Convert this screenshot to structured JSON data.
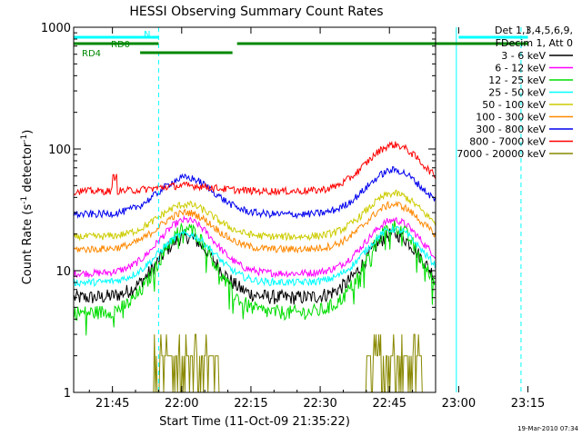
{
  "chart_data": {
    "type": "line",
    "title": "HESSI Observing Summary Count Rates",
    "xlabel": "Start Time (11-Oct-09 21:35:22)",
    "ylabel_main": "Count Rate (s",
    "ylabel_sup": "-1",
    "ylabel_mid": " detector",
    "ylabel_sup2": "-1",
    "ylabel_end": ")",
    "yscale": "log",
    "xlim_minutes": [
      21.6,
      100.0
    ],
    "ylim": [
      1,
      1000
    ],
    "x_ticks": [
      {
        "m": 30,
        "label": "21:45"
      },
      {
        "m": 45,
        "label": "22:00"
      },
      {
        "m": 60,
        "label": "22:15"
      },
      {
        "m": 75,
        "label": "22:30"
      },
      {
        "m": 90,
        "label": "22:45"
      },
      {
        "m": 105,
        "label": "23:00"
      },
      {
        "m": 120,
        "label": "23:15"
      }
    ],
    "y_ticks": [
      {
        "v": 1,
        "label": "1"
      },
      {
        "v": 10,
        "label": "10"
      },
      {
        "v": 100,
        "label": "100"
      },
      {
        "v": 1000,
        "label": "1000"
      }
    ],
    "legend_header": [
      "Det 1,3,4,5,6,9,",
      "FDecim 1, Att 0"
    ],
    "series": [
      {
        "name": "3 - 6 keV",
        "color": "#000000",
        "base": 6,
        "peak1": 19,
        "peak2": 20
      },
      {
        "name": "6 - 12 keV",
        "color": "#ff00ff",
        "base": 9.5,
        "peak1": 26,
        "peak2": 26
      },
      {
        "name": "12 - 25 keV",
        "color": "#00dd00",
        "base": 4.5,
        "peak1": 22,
        "peak2": 23
      },
      {
        "name": "25 - 50 keV",
        "color": "#00ffff",
        "base": 8,
        "peak1": 20,
        "peak2": 22
      },
      {
        "name": "50 - 100 keV",
        "color": "#cccc00",
        "base": 19,
        "peak1": 35,
        "peak2": 43
      },
      {
        "name": "100 - 300 keV",
        "color": "#ff8800",
        "base": 15,
        "peak1": 30,
        "peak2": 35
      },
      {
        "name": "300 - 800 keV",
        "color": "#0000ee",
        "base": 29,
        "peak1": 58,
        "peak2": 67
      },
      {
        "name": "800 - 7000 keV",
        "color": "#ff0000",
        "base": 45,
        "peak1": 50,
        "peak2": 108
      },
      {
        "name": "7000 - 20000 keV",
        "color": "#888800",
        "base": 1,
        "peak1": 3,
        "peak2": 3
      }
    ],
    "colors": {
      "flag_cyan": "#00ffff",
      "flag_green": "#008800",
      "axis": "#000000"
    },
    "flags": [
      {
        "label": "N",
        "color": "#00ffff",
        "segments": [
          [
            21.6,
            40
          ],
          [
            105,
            120
          ]
        ]
      },
      {
        "label": "RD0",
        "color": "#008800",
        "segments": [
          [
            21.6,
            40
          ],
          [
            57,
            120
          ]
        ]
      },
      {
        "label": "RD4",
        "color": "#008800",
        "segments": [
          [
            36,
            56
          ]
        ]
      }
    ],
    "solid_vlines_minutes": [
      21.6,
      104.5
    ],
    "dashed_vlines_minutes": [
      40,
      118.5
    ]
  },
  "footer": {
    "timestamp": "19-Mar-2010 07:34"
  }
}
